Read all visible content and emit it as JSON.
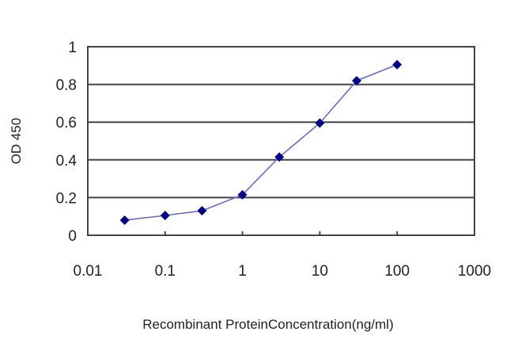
{
  "chart_data": {
    "type": "line",
    "title": "",
    "xlabel": "Recombinant ProteinConcentration(ng/ml)",
    "ylabel": "OD 450",
    "x_scale": "log",
    "xlim": [
      0.01,
      1000
    ],
    "ylim": [
      0,
      1
    ],
    "x_ticks": [
      "0.01",
      "0.1",
      "1",
      "10",
      "100",
      "1000"
    ],
    "y_ticks": [
      "0",
      "0.2",
      "0.4",
      "0.6",
      "0.8",
      "1"
    ],
    "grid": {
      "horizontal": true,
      "vertical": false
    },
    "legend": null,
    "series": [
      {
        "name": "OD 450",
        "color": "#00008b",
        "line_color": "#6a6acd",
        "marker": "diamond",
        "x": [
          0.03,
          0.1,
          0.3,
          1,
          3,
          10,
          30,
          100
        ],
        "y": [
          0.08,
          0.105,
          0.13,
          0.215,
          0.415,
          0.595,
          0.82,
          0.905
        ]
      }
    ]
  }
}
